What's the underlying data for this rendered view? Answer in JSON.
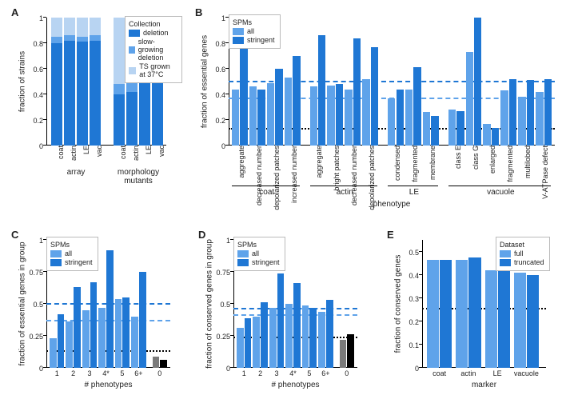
{
  "colors": {
    "c_dark": "#1f77d4",
    "c_mid": "#5fa3ea",
    "c_light": "#b8d4f2",
    "c_black": "#000000",
    "c_gray": "#7a7a7a",
    "grid": "#d0d0d0",
    "bg": "#ffffff"
  },
  "panelA": {
    "label": "A",
    "ylabel": "fraction of strains",
    "ylim": [
      0,
      1.0
    ],
    "ytick_step": 0.2,
    "groups": [
      "array",
      "morphology\nmutants"
    ],
    "legend_title": "Collection",
    "legend": [
      {
        "label": "deletion",
        "color": "#1f77d4"
      },
      {
        "label": "slow-growing deletion",
        "color": "#5fa3ea"
      },
      {
        "label": "TS grown at 37°C",
        "color": "#b8d4f2"
      }
    ],
    "bars": [
      {
        "grp": 0,
        "cat": "coat",
        "v": [
          0.8,
          0.05,
          0.15
        ]
      },
      {
        "grp": 0,
        "cat": "actin",
        "v": [
          0.82,
          0.04,
          0.14
        ]
      },
      {
        "grp": 0,
        "cat": "LE",
        "v": [
          0.81,
          0.04,
          0.15
        ]
      },
      {
        "grp": 0,
        "cat": "vac",
        "v": [
          0.82,
          0.04,
          0.14
        ]
      },
      {
        "grp": 1,
        "cat": "coat",
        "v": [
          0.4,
          0.08,
          0.52
        ]
      },
      {
        "grp": 1,
        "cat": "actin",
        "v": [
          0.42,
          0.12,
          0.46
        ]
      },
      {
        "grp": 1,
        "cat": "LE",
        "v": [
          0.5,
          0.06,
          0.44
        ]
      },
      {
        "grp": 1,
        "cat": "vac",
        "v": [
          0.5,
          0.04,
          0.46
        ]
      }
    ],
    "bar_width": 0.75
  },
  "panelB": {
    "label": "B",
    "ylabel": "fraction of essential genes",
    "ylim": [
      0,
      1.0
    ],
    "ytick_step": 0.2,
    "legend_title": "SPMs",
    "legend": [
      {
        "label": "all",
        "color": "#5fa3ea"
      },
      {
        "label": "stringent",
        "color": "#1f77d4"
      }
    ],
    "xaxis_label": "phenotype",
    "groups": [
      {
        "name": "coat",
        "cats": [
          "aggregate",
          "decreased number",
          "depolarized patches",
          "increased number"
        ]
      },
      {
        "name": "actin",
        "cats": [
          "aggregate",
          "bright patches",
          "decreased number",
          "depolarized patches"
        ]
      },
      {
        "name": "LE",
        "cats": [
          "condensed",
          "fragmented",
          "membrane"
        ]
      },
      {
        "name": "vacuole",
        "cats": [
          "class E",
          "class G",
          "enlarged",
          "fragmented",
          "multilobed",
          "V-ATPase defect"
        ]
      }
    ],
    "pairs": [
      [
        0.44,
        0.85
      ],
      [
        0.46,
        0.44
      ],
      [
        0.49,
        0.6
      ],
      [
        0.53,
        0.7
      ],
      [
        0.46,
        0.86
      ],
      [
        0.47,
        0.48
      ],
      [
        0.44,
        0.84
      ],
      [
        0.52,
        0.77
      ],
      [
        0.37,
        0.44
      ],
      [
        0.44,
        0.61
      ],
      [
        0.26,
        0.23
      ],
      [
        0.28,
        0.27
      ],
      [
        0.73,
        1.0
      ],
      [
        0.17,
        0.14
      ],
      [
        0.43,
        0.52
      ],
      [
        0.38,
        0.51
      ],
      [
        0.42,
        0.52
      ]
    ],
    "refs": {
      "dark_dashed": {
        "y": 0.5,
        "color": "#1f77d4"
      },
      "mid_dashed": {
        "y": 0.37,
        "color": "#5fa3ea"
      },
      "black_dotted": {
        "y": 0.13,
        "color": "#000000"
      }
    }
  },
  "panelC": {
    "label": "C",
    "ylabel": "fraction of essential genes in group",
    "ylim": [
      0,
      1.0
    ],
    "ytick_step": 0.25,
    "legend_title": "SPMs",
    "legend": [
      {
        "label": "all",
        "color": "#5fa3ea"
      },
      {
        "label": "stringent",
        "color": "#1f77d4"
      }
    ],
    "xlabel": "# phenotypes",
    "cats": [
      "1",
      "2",
      "3",
      "4*",
      "5",
      "6+",
      "0"
    ],
    "pairs": [
      [
        0.23,
        0.42
      ],
      [
        0.36,
        0.63
      ],
      [
        0.45,
        0.67
      ],
      [
        0.47,
        0.92
      ],
      [
        0.54,
        0.55
      ],
      [
        0.4,
        0.75
      ]
    ],
    "zero_pair": [
      0.09,
      0.06
    ],
    "refs": {
      "dark_dashed": {
        "y": 0.5,
        "color": "#1f77d4"
      },
      "mid_dashed": {
        "y": 0.37,
        "color": "#5fa3ea"
      },
      "black_dotted": {
        "y": 0.13,
        "color": "#000000"
      }
    }
  },
  "panelD": {
    "label": "D",
    "ylabel": "fraction of conserved genes in group",
    "ylim": [
      0,
      1.0
    ],
    "ytick_step": 0.25,
    "legend_title": "SPMs",
    "legend": [
      {
        "label": "all",
        "color": "#5fa3ea"
      },
      {
        "label": "stringent",
        "color": "#1f77d4"
      }
    ],
    "xlabel": "# phenotypes",
    "cats": [
      "1",
      "2",
      "3",
      "4*",
      "5",
      "6+",
      "0"
    ],
    "pairs": [
      [
        0.31,
        0.39
      ],
      [
        0.4,
        0.51
      ],
      [
        0.47,
        0.74
      ],
      [
        0.5,
        0.66
      ],
      [
        0.49,
        0.47
      ],
      [
        0.44,
        0.53
      ]
    ],
    "zero_pair": [
      0.22,
      0.26
    ],
    "refs": {
      "dark_dashed": {
        "y": 0.46,
        "color": "#1f77d4"
      },
      "mid_dashed": {
        "y": 0.41,
        "color": "#5fa3ea"
      },
      "black_dotted": {
        "y": 0.24,
        "color": "#000000"
      }
    }
  },
  "panelE": {
    "label": "E",
    "ylabel": "fraction of conserved genes",
    "ylim": [
      0,
      0.55
    ],
    "ytick_step": 0.1,
    "legend_title": "Dataset",
    "legend": [
      {
        "label": "full",
        "color": "#5fa3ea"
      },
      {
        "label": "truncated",
        "color": "#1f77d4"
      }
    ],
    "xlabel": "marker",
    "cats": [
      "coat",
      "actin",
      "LE",
      "vacuole"
    ],
    "pairs": [
      [
        0.465,
        0.465
      ],
      [
        0.465,
        0.475
      ],
      [
        0.42,
        0.43
      ],
      [
        0.41,
        0.4
      ]
    ],
    "refs": {
      "black_dotted": {
        "y": 0.255,
        "color": "#000000"
      }
    }
  }
}
